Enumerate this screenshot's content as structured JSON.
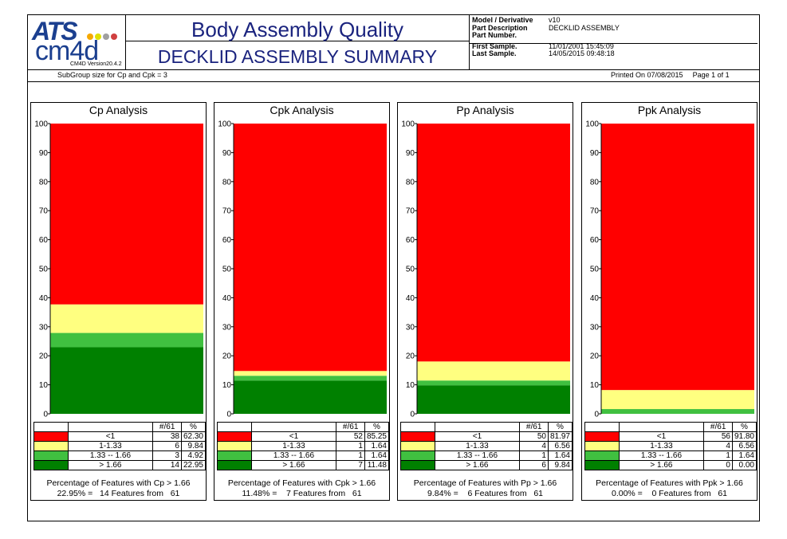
{
  "header": {
    "logo_text": "ATS",
    "logo_sub": "cm4d",
    "version": "CM4D Version20.4.2",
    "title": "Body Assembly Quality",
    "subtitle": "DECKLID ASSEMBLY SUMMARY",
    "info": [
      {
        "label": "Model / Derivative",
        "value": "v10"
      },
      {
        "label": "Part Description",
        "value": "DECKLID ASSEMBLY"
      },
      {
        "label": "Part Number.",
        "value": ""
      },
      {
        "label": "First Sample.",
        "value": "11/01/2001 15:45:09"
      },
      {
        "label": "Last Sample.",
        "value": "14/05/2015 09:48:18"
      }
    ],
    "subgroup": "SubGroup size for Cp and Cpk = 3",
    "printed": "Printed On 07/08/2015",
    "page": "Page 1 of 1"
  },
  "colors": {
    "red": "#ff0000",
    "yellow": "#ffff80",
    "lightgreen": "#40c040",
    "green": "#008000"
  },
  "table_header": {
    "count": "#/61",
    "percent": "%"
  },
  "categories": [
    "<1",
    "1-1.33",
    "1.33 -- 1.66",
    "> 1.66"
  ],
  "category_colors": [
    "#ff0000",
    "#ffff80",
    "#40c040",
    "#008000"
  ],
  "chart_data": [
    {
      "type": "bar",
      "stacked": true,
      "title": "Cp Analysis",
      "ylim": [
        0,
        100
      ],
      "yticks": [
        0,
        10,
        20,
        30,
        40,
        50,
        60,
        70,
        80,
        90,
        100
      ],
      "series": [
        {
          "name": "<1",
          "count": 38,
          "values": [
            62.3
          ]
        },
        {
          "name": "1-1.33",
          "count": 6,
          "values": [
            9.84
          ]
        },
        {
          "name": "1.33 -- 1.66",
          "count": 3,
          "values": [
            4.92
          ]
        },
        {
          "name": "> 1.66",
          "count": 14,
          "values": [
            22.95
          ]
        }
      ],
      "footer1": "Percentage of Features with Cp > 1.66",
      "footer2": "22.95% =   14 Features from   61"
    },
    {
      "type": "bar",
      "stacked": true,
      "title": "Cpk Analysis",
      "ylim": [
        0,
        100
      ],
      "yticks": [
        0,
        10,
        20,
        30,
        40,
        50,
        60,
        70,
        80,
        90,
        100
      ],
      "series": [
        {
          "name": "<1",
          "count": 52,
          "values": [
            85.25
          ]
        },
        {
          "name": "1-1.33",
          "count": 1,
          "values": [
            1.64
          ]
        },
        {
          "name": "1.33 -- 1.66",
          "count": 1,
          "values": [
            1.64
          ]
        },
        {
          "name": "> 1.66",
          "count": 7,
          "values": [
            11.48
          ]
        }
      ],
      "footer1": "Percentage of Features with Cpk > 1.66",
      "footer2": "11.48% =    7 Features from   61"
    },
    {
      "type": "bar",
      "stacked": true,
      "title": "Pp Analysis",
      "ylim": [
        0,
        100
      ],
      "yticks": [
        0,
        10,
        20,
        30,
        40,
        50,
        60,
        70,
        80,
        90,
        100
      ],
      "series": [
        {
          "name": "<1",
          "count": 50,
          "values": [
            81.97
          ]
        },
        {
          "name": "1-1.33",
          "count": 4,
          "values": [
            6.56
          ]
        },
        {
          "name": "1.33 -- 1.66",
          "count": 1,
          "values": [
            1.64
          ]
        },
        {
          "name": "> 1.66",
          "count": 6,
          "values": [
            9.84
          ]
        }
      ],
      "footer1": "Percentage of Features with Pp > 1.66",
      "footer2": "9.84% =    6 Features from   61"
    },
    {
      "type": "bar",
      "stacked": true,
      "title": "Ppk Analysis",
      "ylim": [
        0,
        100
      ],
      "yticks": [
        0,
        10,
        20,
        30,
        40,
        50,
        60,
        70,
        80,
        90,
        100
      ],
      "series": [
        {
          "name": "<1",
          "count": 56,
          "values": [
            91.8
          ]
        },
        {
          "name": "1-1.33",
          "count": 4,
          "values": [
            6.56
          ]
        },
        {
          "name": "1.33 -- 1.66",
          "count": 1,
          "values": [
            1.64
          ]
        },
        {
          "name": "> 1.66",
          "count": 0,
          "values": [
            0.0
          ]
        }
      ],
      "footer1": "Percentage of Features with Ppk > 1.66",
      "footer2": "0.00% =    0 Features from   61"
    }
  ]
}
